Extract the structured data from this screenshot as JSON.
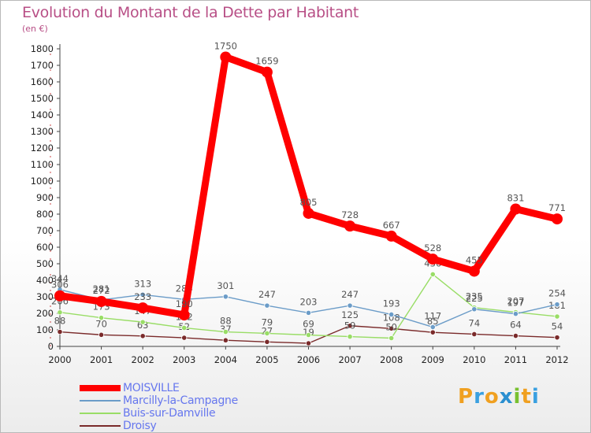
{
  "title": "Evolution du Montant de la Dette par Habitant",
  "unit": "(en €)",
  "logo": [
    "P",
    "r",
    "o",
    "x",
    "i",
    "t",
    "i"
  ],
  "chart_data": {
    "type": "line",
    "x": [
      "2000",
      "2001",
      "2002",
      "2003",
      "2004",
      "2005",
      "2006",
      "2007",
      "2008",
      "2009",
      "2010",
      "2011",
      "2012"
    ],
    "ylim": [
      0,
      1800
    ],
    "yticks": [
      0,
      100,
      200,
      300,
      400,
      500,
      600,
      700,
      800,
      900,
      1000,
      1100,
      1200,
      1300,
      1400,
      1500,
      1600,
      1700,
      1800
    ],
    "grid": false,
    "legend_position": "bottom-left",
    "series": [
      {
        "name": "MOISVILLE",
        "color": "#ff0000",
        "values": [
          306,
          272,
          233,
          190,
          1750,
          1659,
          805,
          728,
          667,
          528,
          455,
          831,
          771
        ],
        "labels": [
          "306",
          "272",
          "233",
          "190",
          "1750",
          "1659",
          "805",
          "728",
          "667",
          "528",
          "455",
          "831",
          "771"
        ]
      },
      {
        "name": "Marcilly-la-Campagne",
        "color": "#6b9cc8",
        "values": [
          344,
          281,
          313,
          284,
          301,
          247,
          203,
          247,
          193,
          117,
          225,
          197,
          254
        ],
        "labels": [
          "344",
          "281",
          "313",
          "284",
          "301",
          "247",
          "203",
          "247",
          "193",
          "117",
          "225",
          "197",
          "254"
        ]
      },
      {
        "name": "Buis-sur-Damville",
        "color": "#99dd66",
        "values": [
          206,
          173,
          147,
          112,
          88,
          79,
          69,
          59,
          50,
          436,
          235,
          207,
          181
        ],
        "labels": [
          "206",
          "173",
          "147",
          "112",
          "88",
          "79",
          "69",
          "59",
          "50",
          "436",
          "235",
          "207",
          "181"
        ]
      },
      {
        "name": "Droisy",
        "color": "#7a2a2a",
        "values": [
          88,
          70,
          63,
          52,
          37,
          27,
          19,
          125,
          108,
          85,
          74,
          64,
          54
        ],
        "labels": [
          "88",
          "70",
          "63",
          "52",
          "37",
          "27",
          "19",
          "125",
          "108",
          "85",
          "74",
          "64",
          "54"
        ]
      }
    ]
  }
}
